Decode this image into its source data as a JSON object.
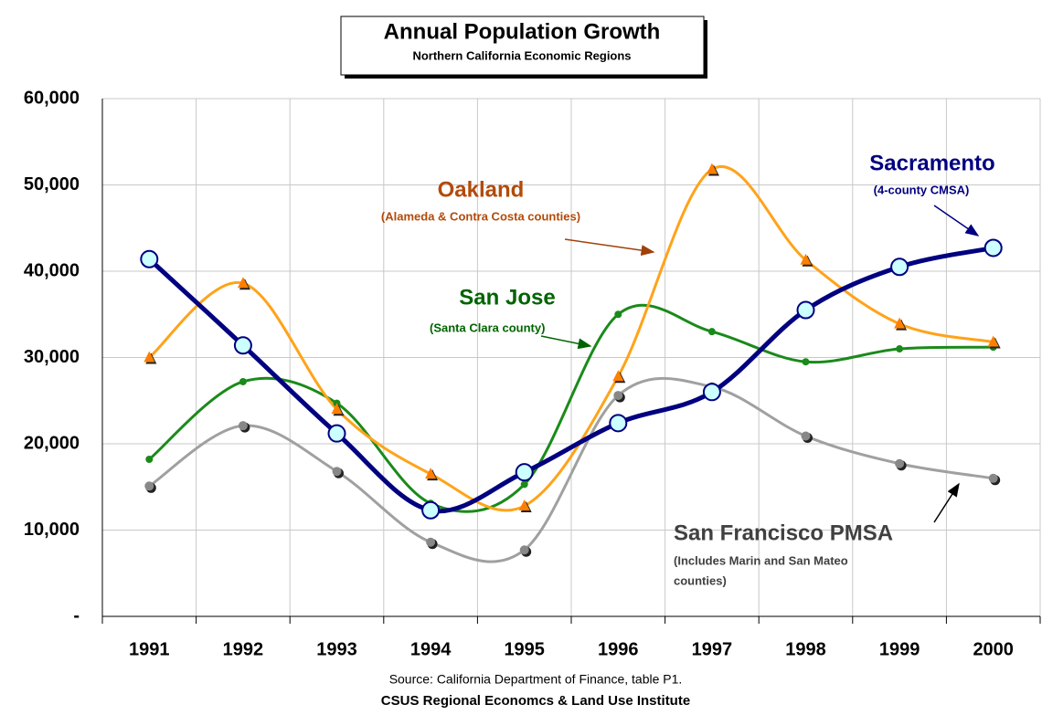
{
  "chart_data": {
    "type": "line",
    "title": "Annual Population Growth",
    "subtitle": "Northern California Economic Regions",
    "categories": [
      "1991",
      "1992",
      "1993",
      "1994",
      "1995",
      "1996",
      "1997",
      "1998",
      "1999",
      "2000"
    ],
    "ylim": [
      0,
      60000
    ],
    "yticks": [
      {
        "value": 0,
        "label": "-"
      },
      {
        "value": 10000,
        "label": "10,000"
      },
      {
        "value": 20000,
        "label": "20,000"
      },
      {
        "value": 30000,
        "label": "30,000"
      },
      {
        "value": 40000,
        "label": "40,000"
      },
      {
        "value": 50000,
        "label": "50,000"
      },
      {
        "value": 60000,
        "label": "60,000"
      }
    ],
    "grid": true,
    "series": [
      {
        "name": "Sacramento",
        "color": "#000080",
        "values": [
          41400,
          31400,
          21200,
          12300,
          16700,
          22400,
          26000,
          35500,
          40500,
          42700
        ]
      },
      {
        "name": "Oakland",
        "color": "#ffa31a",
        "values": [
          30000,
          38600,
          24000,
          16500,
          12800,
          27800,
          51800,
          41300,
          33900,
          31800
        ]
      },
      {
        "name": "San Jose",
        "color": "#1a8a1a",
        "values": [
          18200,
          27200,
          24700,
          13100,
          15300,
          35000,
          33000,
          29500,
          31000,
          31200
        ]
      },
      {
        "name": "San Francisco PMSA",
        "color": "#a0a0a0",
        "values": [
          15100,
          22100,
          16800,
          8600,
          7700,
          25600,
          26600,
          20900,
          17700,
          16000
        ]
      }
    ],
    "annotations": [
      "(4-county CMSA)",
      "(Alameda & Contra Costa counties)",
      "(Santa Clara county)",
      "(Includes Marin and San Mateo",
      "counties)"
    ],
    "source": "Source: California Department of Finance, table P1.",
    "credit": "CSUS Regional Economcs & Land Use Institute"
  }
}
